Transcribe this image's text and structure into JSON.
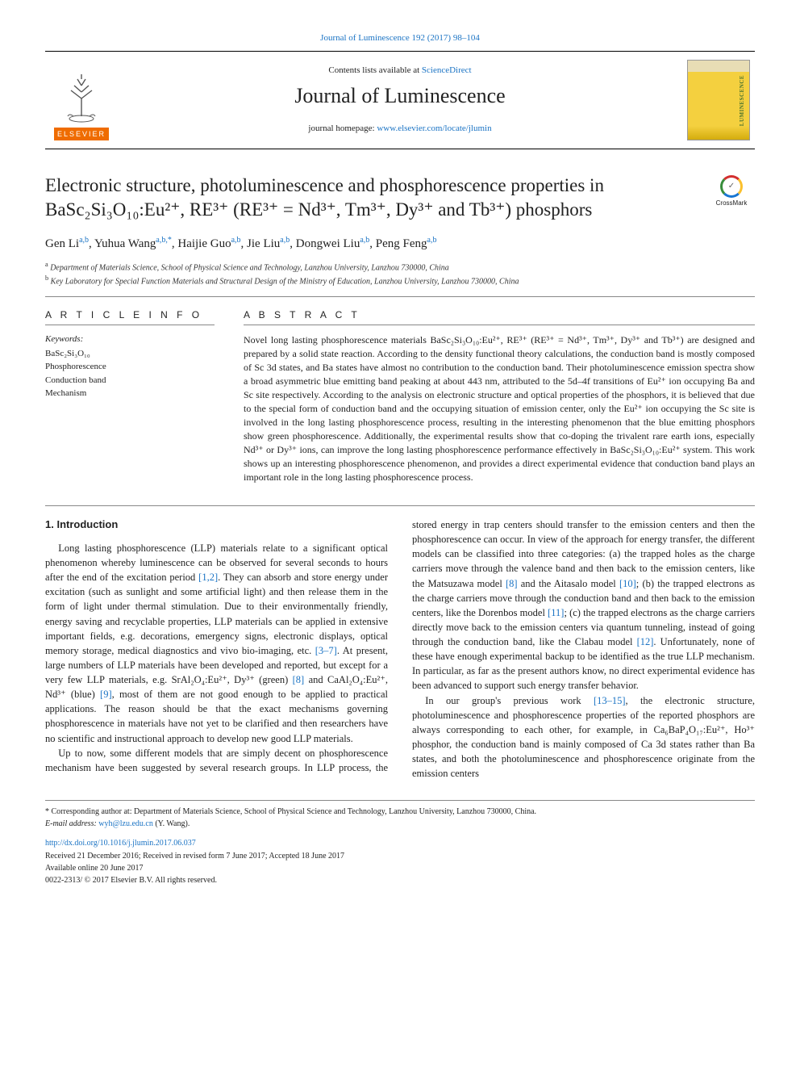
{
  "top_link": {
    "text": "Journal of Luminescence 192 (2017) 98–104",
    "href": "#"
  },
  "header": {
    "contents_prefix": "Contents lists available at ",
    "contents_link": "ScienceDirect",
    "journal_name": "Journal of Luminescence",
    "homepage_prefix": "journal homepage: ",
    "homepage_link": "www.elsevier.com/locate/jlumin",
    "elsevier_label": "ELSEVIER",
    "cover_label": "LUMINESCENCE"
  },
  "crossmark": {
    "label": "CrossMark",
    "glyph": "✓"
  },
  "title": "Electronic structure, photoluminescence and phosphorescence properties in BaSc₂Si₃O₁₀:Eu²⁺, RE³⁺ (RE³⁺ = Nd³⁺, Tm³⁺, Dy³⁺ and Tb³⁺) phosphors",
  "authors_html": "Gen Li<sup class=\"affref\">a,b</sup>, Yuhua Wang<sup class=\"affref\">a,b,*</sup>, Haijie Guo<sup class=\"affref\">a,b</sup>, Jie Liu<sup class=\"affref\">a,b</sup>, Dongwei Liu<sup class=\"affref\">a,b</sup>, Peng Feng<sup class=\"affref\">a,b</sup>",
  "affiliations": [
    {
      "mark": "a",
      "text": "Department of Materials Science, School of Physical Science and Technology, Lanzhou University, Lanzhou 730000, China"
    },
    {
      "mark": "b",
      "text": "Key Laboratory for Special Function Materials and Structural Design of the Ministry of Education, Lanzhou University, Lanzhou 730000, China"
    }
  ],
  "info": {
    "heading": "A R T I C L E  I N F O",
    "keywords_label": "Keywords:",
    "keywords": [
      "BaSc₂Si₃O₁₀",
      "Phosphorescence",
      "Conduction band",
      "Mechanism"
    ]
  },
  "abstract": {
    "heading": "A B S T R A C T",
    "text": "Novel long lasting phosphorescence materials BaSc₂Si₃O₁₀:Eu²⁺, RE³⁺ (RE³⁺ = Nd³⁺, Tm³⁺, Dy³⁺ and Tb³⁺) are designed and prepared by a solid state reaction. According to the density functional theory calculations, the conduction band is mostly composed of Sc 3d states, and Ba states have almost no contribution to the conduction band. Their photoluminescence emission spectra show a broad asymmetric blue emitting band peaking at about 443 nm, attributed to the 5d–4f transitions of Eu²⁺ ion occupying Ba and Sc site respectively. According to the analysis on electronic structure and optical properties of the phosphors, it is believed that due to the special form of conduction band and the occupying situation of emission center, only the Eu²⁺ ion occupying the Sc site is involved in the long lasting phosphorescence process, resulting in the interesting phenomenon that the blue emitting phosphors show green phosphorescence. Additionally, the experimental results show that co-doping the trivalent rare earth ions, especially Nd³⁺ or Dy³⁺ ions, can improve the long lasting phosphorescence performance effectively in BaSc₂Si₃O₁₀:Eu²⁺ system. This work shows up an interesting phosphorescence phenomenon, and provides a direct experimental evidence that conduction band plays an important role in the long lasting phosphorescence process."
  },
  "body": {
    "heading": "1. Introduction",
    "p1_a": "Long lasting phosphorescence (LLP) materials relate to a significant optical phenomenon whereby luminescence can be observed for several seconds to hours after the end of the excitation period ",
    "p1_ref1": "[1,2]",
    "p1_b": ". They can absorb and store energy under excitation (such as sunlight and some artificial light) and then release them in the form of light under thermal stimulation. Due to their environmentally friendly, energy saving and recyclable properties, LLP materials can be applied in extensive important fields, e.g. decorations, emergency signs, electronic displays, optical memory storage, medical diagnostics and vivo bio-imaging, etc. ",
    "p1_ref2": "[3–7]",
    "p1_c": ". At present, large numbers of LLP materials have been developed and reported, but except for a very few LLP materials, e.g. SrAl₂O₄:Eu²⁺, Dy³⁺ (green) ",
    "p1_ref3": "[8]",
    "p1_d": " and CaAl₂O₄:Eu²⁺, Nd³⁺ (blue) ",
    "p1_ref4": "[9]",
    "p1_e": ", most of them are not good enough to be applied to practical applications. The reason should be that the exact mechanisms governing phosphorescence in materials have not yet to be clarified and then researchers have no scientific and instructional approach to develop new good LLP materials.",
    "p2": "Up to now, some different models that are simply decent on phosphorescence mechanism have been suggested by several research groups. In LLP process, the stored energy in trap centers should transfer to the emission centers and then the phosphorescence can occur. In view of the approach for energy transfer, the different models can be classified into three categories: (a) the trapped holes as the charge carriers move through the valence band and then back to the emission centers, like the Matsuzawa model ",
    "p2_ref1": "[8]",
    "p2_b": " and the Aitasalo model ",
    "p2_ref2": "[10]",
    "p2_c": "; (b) the trapped electrons as the charge carriers move through the conduction band and then back to the emission centers, like the Dorenbos model ",
    "p2_ref3": "[11]",
    "p2_d": "; (c) the trapped electrons as the charge carriers directly move back to the emission centers via quantum tunneling, instead of going through the conduction band, like the Clabau model ",
    "p2_ref4": "[12]",
    "p2_e": ". Unfortunately, none of these have enough experimental backup to be identified as the true LLP mechanism. In particular, as far as the present authors know, no direct experimental evidence has been advanced to support such energy transfer behavior.",
    "p3_a": "In our group's previous work ",
    "p3_ref1": "[13–15]",
    "p3_b": ", the electronic structure, photoluminescence and phosphorescence properties of the reported phosphors are always corresponding to each other, for example, in Ca₆BaP₄O₁₇:Eu²⁺, Ho³⁺ phosphor, the conduction band is mainly composed of Ca 3d states rather than Ba states, and both the photoluminescence and phosphorescence originate from the emission centers"
  },
  "footer": {
    "corresponding_mark": "*",
    "corresponding_text": " Corresponding author at: Department of Materials Science, School of Physical Science and Technology, Lanzhou University, Lanzhou 730000, China.",
    "email_label": "E-mail address: ",
    "email": "wyh@lzu.edu.cn",
    "email_suffix": " (Y. Wang).",
    "doi": "http://dx.doi.org/10.1016/j.jlumin.2017.06.037",
    "received": "Received 21 December 2016; Received in revised form 7 June 2017; Accepted 18 June 2017",
    "available": "Available online 20 June 2017",
    "copyright": "0022-2313/ © 2017 Elsevier B.V. All rights reserved."
  },
  "colors": {
    "link": "#1a73c4",
    "elsevier_orange": "#ef6c00",
    "cover_yellow": "#f4d03f"
  }
}
